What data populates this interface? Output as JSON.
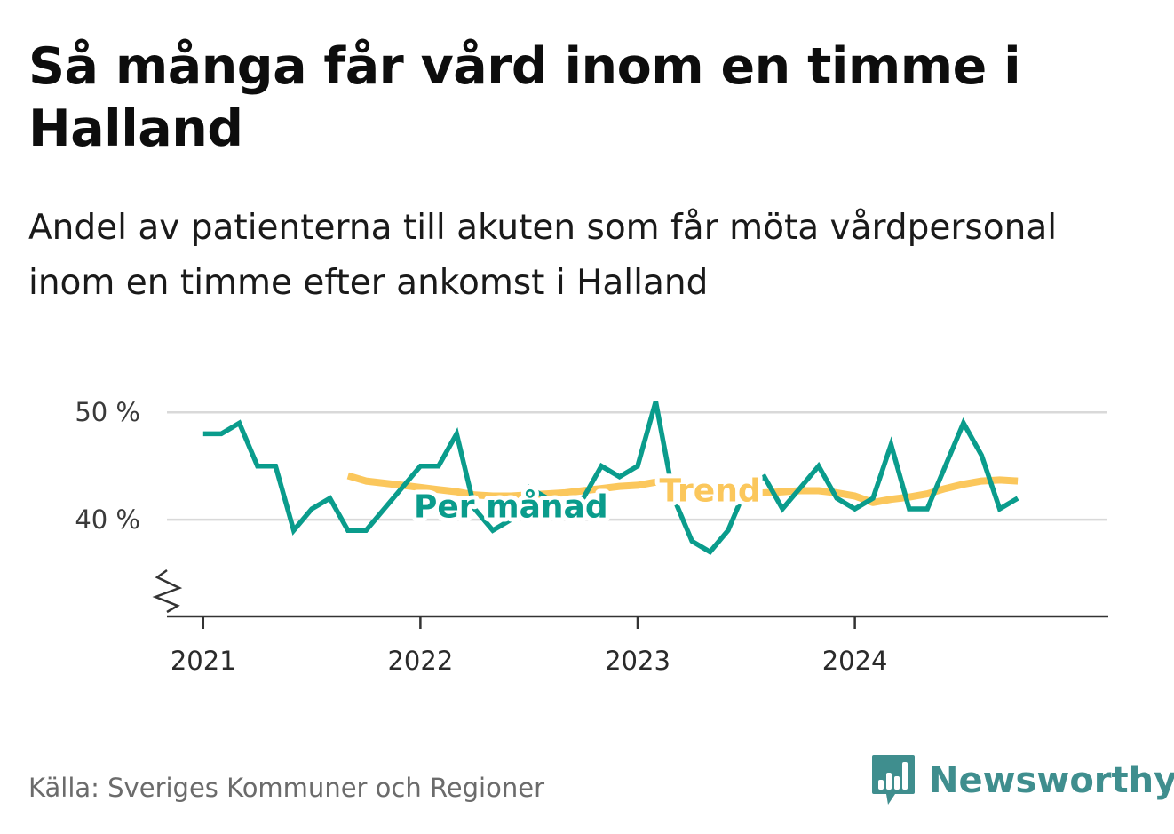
{
  "title": "Så många får vård inom en timme i Halland",
  "subtitle": "Andel av patienterna till akuten som får möta vårdpersonal inom en timme efter ankomst i Halland",
  "source": "Källa: Sveriges Kommuner och Regioner",
  "brand": {
    "name": "Newsworthy",
    "icon": "newsworthy-logo-icon"
  },
  "colors": {
    "monthly": "#0a9c8c",
    "trend": "#fbc75c",
    "grid": "#d9d9d9",
    "axis": "#333333",
    "brand": "#3f8e8e"
  },
  "chart_data": {
    "type": "line",
    "x_unit": "month",
    "y_unit": "%",
    "ylim": [
      31,
      52
    ],
    "yticks": [
      40,
      50
    ],
    "ytick_labels": [
      "40 %",
      "50 %"
    ],
    "xlim": [
      "2020-11",
      "2025-03"
    ],
    "xticks": [
      "2021-01",
      "2022-01",
      "2023-01",
      "2024-01"
    ],
    "xtick_labels": [
      "2021",
      "2022",
      "2023",
      "2024"
    ],
    "axis_break": true,
    "grid": "horizontal",
    "legend": "inline labels on the lines",
    "series": [
      {
        "name": "Per månad",
        "x": [
          "2021-01",
          "2021-02",
          "2021-03",
          "2021-04",
          "2021-05",
          "2021-06",
          "2021-07",
          "2021-08",
          "2021-09",
          "2021-10",
          "2021-11",
          "2021-12",
          "2022-01",
          "2022-02",
          "2022-03",
          "2022-04",
          "2022-05",
          "2022-06",
          "2022-07",
          "2022-08",
          "2022-09",
          "2022-10",
          "2022-11",
          "2022-12",
          "2023-01",
          "2023-02",
          "2023-03",
          "2023-04",
          "2023-05",
          "2023-06",
          "2023-07",
          "2023-08",
          "2023-09",
          "2023-10",
          "2023-11",
          "2023-12",
          "2024-01",
          "2024-02",
          "2024-03",
          "2024-04",
          "2024-05",
          "2024-06",
          "2024-07",
          "2024-08",
          "2024-09",
          "2024-10"
        ],
        "values": [
          48,
          48,
          49,
          45,
          45,
          39,
          41,
          42,
          39,
          39,
          41,
          43,
          45,
          45,
          48,
          41,
          39,
          40,
          43,
          42,
          41,
          42,
          45,
          44,
          45,
          51,
          42,
          38,
          37,
          39,
          43,
          44,
          41,
          43,
          45,
          42,
          41,
          42,
          47,
          41,
          41,
          45,
          49,
          46,
          41,
          42
        ]
      },
      {
        "name": "Trend",
        "x": [
          "2021-09",
          "2021-10",
          "2021-11",
          "2021-12",
          "2022-01",
          "2022-02",
          "2022-03",
          "2022-04",
          "2022-05",
          "2022-06",
          "2022-07",
          "2022-08",
          "2022-09",
          "2022-10",
          "2022-11",
          "2022-12",
          "2023-01",
          "2023-02",
          "2023-03",
          "2023-04",
          "2023-05",
          "2023-06",
          "2023-07",
          "2023-08",
          "2023-09",
          "2023-10",
          "2023-11",
          "2023-12",
          "2024-01",
          "2024-02",
          "2024-03",
          "2024-04",
          "2024-05",
          "2024-06",
          "2024-07",
          "2024-08",
          "2024-09",
          "2024-10"
        ],
        "values": [
          44.1,
          43.6,
          43.4,
          43.2,
          43.0,
          42.8,
          42.6,
          42.3,
          42.2,
          42.2,
          42.3,
          42.4,
          42.5,
          42.7,
          42.9,
          43.1,
          43.2,
          43.5,
          43.2,
          42.9,
          42.7,
          42.5,
          42.4,
          42.5,
          42.6,
          42.7,
          42.7,
          42.5,
          42.2,
          41.6,
          41.9,
          42.1,
          42.4,
          42.9,
          43.3,
          43.6,
          43.7,
          43.6
        ]
      }
    ],
    "annotations": [
      {
        "text": "Per månad",
        "series": "Per månad",
        "at": "2022-06",
        "value": 41.2
      },
      {
        "text": "Trend",
        "series": "Trend",
        "at": "2023-05",
        "value": 42.7
      }
    ]
  }
}
